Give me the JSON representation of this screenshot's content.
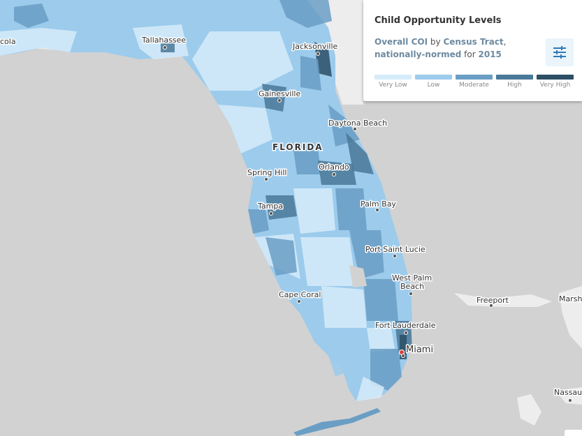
{
  "panel": {
    "title": "Child Opportunity Levels",
    "subtitle": {
      "index": "Overall COI",
      "by": "by",
      "geo": "Census Tract",
      "comma": ",",
      "norm": "nationally-normed",
      "for": "for",
      "year": "2015"
    },
    "settings_icon": "sliders-icon",
    "legend": [
      {
        "label": "Very Low",
        "color": "#d6ecfa"
      },
      {
        "label": "Low",
        "color": "#9ccbec"
      },
      {
        "label": "Moderate",
        "color": "#6a9ec4"
      },
      {
        "label": "High",
        "color": "#4a7898"
      },
      {
        "label": "Very High",
        "color": "#2c4f66"
      }
    ]
  },
  "map": {
    "state_label": "FLORIDA",
    "cities": {
      "pensacola": "cola",
      "tallahassee": "Tallahassee",
      "jacksonville": "Jacksonville",
      "gainesville": "Gainesville",
      "daytona": "Daytona Beach",
      "spring_hill": "Spring Hill",
      "orlando": "Orlando",
      "tampa": "Tampa",
      "palm_bay": "Palm Bay",
      "port_saint_lucie": "Port Saint Lucie",
      "west_palm_1": "West Palm",
      "west_palm_2": "Beach",
      "cape_coral": "Cape Coral",
      "fort_lauderdale": "Fort Lauderdale",
      "miami": "Miami",
      "freeport": "Freeport",
      "marsh": "Marsh",
      "nassau": "Nassau"
    },
    "colors": {
      "land": "#ededed",
      "water": "#d2d2d2",
      "very_low": "#d6ecfa",
      "low": "#9ccbec",
      "moderate": "#6a9ec4",
      "high": "#4a7898",
      "very_high": "#2c4f66",
      "marker": "#e0413a"
    }
  }
}
